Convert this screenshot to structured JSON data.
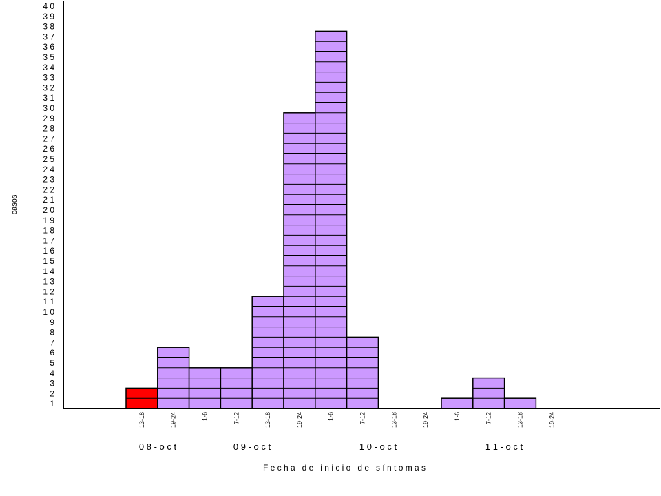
{
  "chart_data": {
    "type": "bar",
    "title": "",
    "ylabel": "casos",
    "xlabel": "F e c h a   d e   i n i c i o   d e   s í n t o m a s",
    "ylim": [
      0,
      40
    ],
    "y_ticks": [
      "1",
      "2",
      "3",
      "4",
      "5",
      "6",
      "7",
      "8",
      "9",
      "1 0",
      "1 1",
      "1 2",
      "1 3",
      "1 4",
      "1 5",
      "1 6",
      "1 7",
      "1 8",
      "1 9",
      "2 0",
      "2 1",
      "2 2",
      "2 3",
      "2 4",
      "2 5",
      "2 6",
      "2 7",
      "2 8",
      "2 9",
      "3 0",
      "3 1",
      "3 2",
      "3 3",
      "3 4",
      "3 5",
      "3 6",
      "3 7",
      "3 8",
      "3 9",
      "4 0"
    ],
    "categories": [
      "13-18",
      "19-24",
      "1-6",
      "7-12",
      "13-18",
      "19-24",
      "1-6",
      "7-12",
      "13-18",
      "19-24",
      "1-6",
      "7-12",
      "13-18",
      "19-24"
    ],
    "values": [
      2,
      6,
      4,
      4,
      11,
      29,
      37,
      7,
      0,
      0,
      1,
      3,
      1,
      0
    ],
    "bar_colors": [
      "#ff0000",
      "#cc99ff",
      "#cc99ff",
      "#cc99ff",
      "#cc99ff",
      "#cc99ff",
      "#cc99ff",
      "#cc99ff",
      "#cc99ff",
      "#cc99ff",
      "#cc99ff",
      "#cc99ff",
      "#cc99ff",
      "#cc99ff"
    ],
    "day_labels": [
      "0 8 - o c t",
      "0 9 - o c t",
      "1 0 - o c t",
      "1 1 - o c t"
    ],
    "grid": false,
    "legend": "none"
  }
}
